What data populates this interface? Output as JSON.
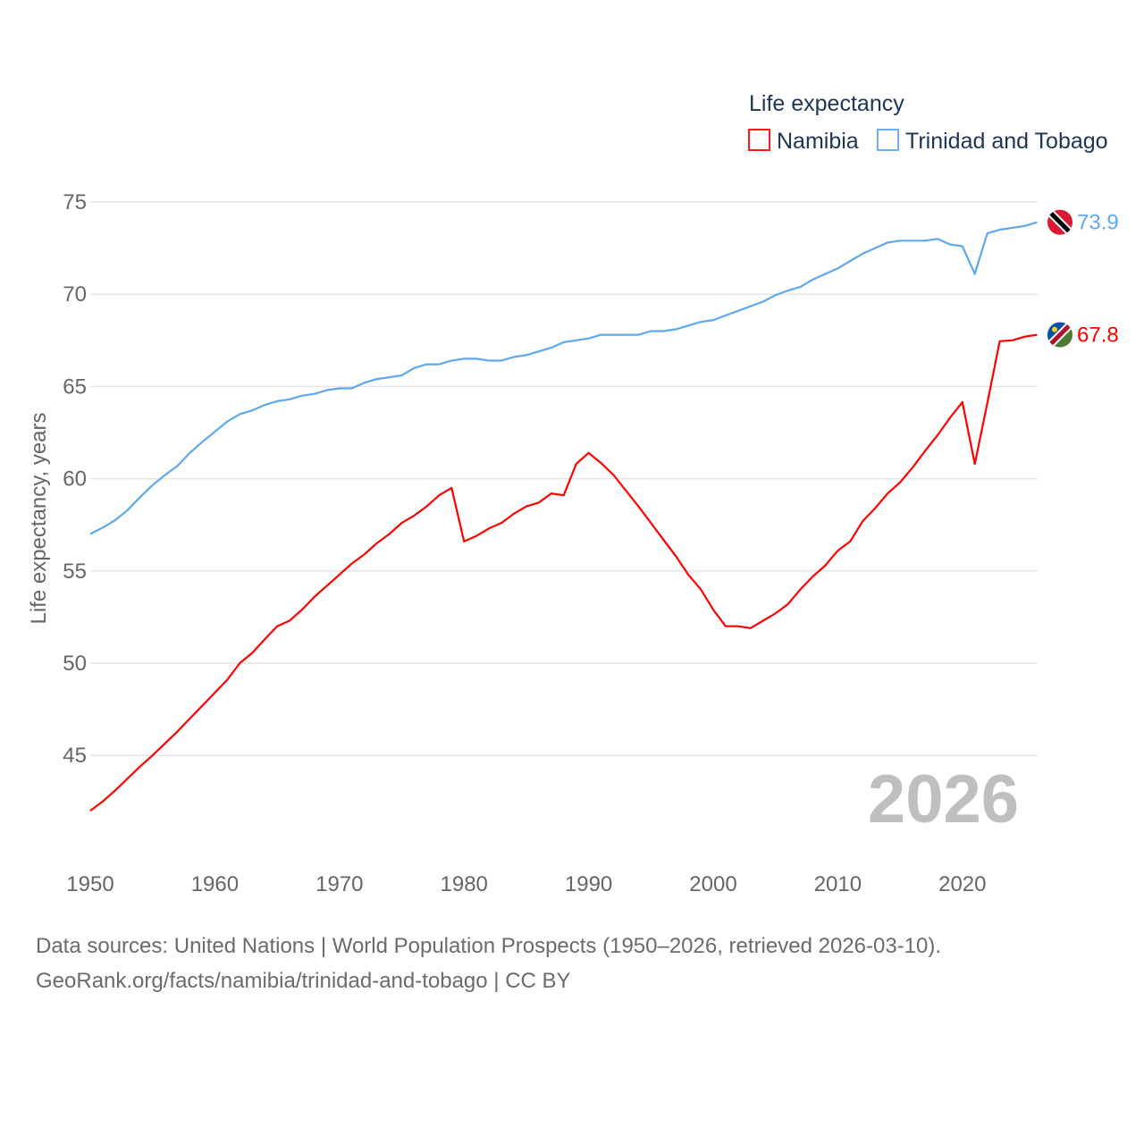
{
  "chart_data": {
    "type": "line",
    "legend_title": "Life expectancy",
    "legend_position": "top-right",
    "ylabel": "Life expectancy, years",
    "xlabel": "",
    "ylim": [
      40,
      76
    ],
    "xlim": [
      1950,
      2026
    ],
    "yticks": [
      45,
      50,
      55,
      60,
      65,
      70,
      75
    ],
    "xticks": [
      1950,
      1960,
      1970,
      1980,
      1990,
      2000,
      2010,
      2020
    ],
    "grid": true,
    "year_label": "2026",
    "x": [
      1950,
      1951,
      1952,
      1953,
      1954,
      1955,
      1956,
      1957,
      1958,
      1959,
      1960,
      1961,
      1962,
      1963,
      1964,
      1965,
      1966,
      1967,
      1968,
      1969,
      1970,
      1971,
      1972,
      1973,
      1974,
      1975,
      1976,
      1977,
      1978,
      1979,
      1980,
      1981,
      1982,
      1983,
      1984,
      1985,
      1986,
      1987,
      1988,
      1989,
      1990,
      1991,
      1992,
      1993,
      1994,
      1995,
      1996,
      1997,
      1998,
      1999,
      2000,
      2001,
      2002,
      2003,
      2004,
      2005,
      2006,
      2007,
      2008,
      2009,
      2010,
      2011,
      2012,
      2013,
      2014,
      2015,
      2016,
      2017,
      2018,
      2019,
      2020,
      2021,
      2022,
      2023,
      2024,
      2025,
      2026
    ],
    "series": [
      {
        "name": "Namibia",
        "color": "#ff0000",
        "end_label": "67.8",
        "flag": "namibia",
        "values": [
          42.0,
          42.5,
          43.1,
          43.75,
          44.4,
          45.0,
          45.65,
          46.3,
          47.0,
          47.7,
          48.4,
          49.1,
          50.0,
          50.55,
          51.3,
          52.0,
          52.3,
          52.9,
          53.6,
          54.2,
          54.8,
          55.4,
          55.9,
          56.5,
          57.0,
          57.6,
          58.0,
          58.5,
          59.1,
          59.5,
          56.6,
          56.9,
          57.3,
          57.6,
          58.1,
          58.5,
          58.7,
          59.2,
          59.1,
          60.8,
          61.4,
          60.85,
          60.2,
          59.35,
          58.5,
          57.6,
          56.7,
          55.8,
          54.8,
          54.0,
          52.9,
          52.0,
          52.0,
          51.9,
          52.3,
          52.7,
          53.2,
          54.0,
          54.7,
          55.3,
          56.1,
          56.6,
          57.7,
          58.4,
          59.2,
          59.8,
          60.6,
          61.5,
          62.35,
          63.3,
          64.15,
          60.8,
          64.1,
          67.45,
          67.5,
          67.7,
          67.8
        ]
      },
      {
        "name": "Trinidad and Tobago",
        "color": "#5ea8ee",
        "end_label": "73.9",
        "flag": "trinidad",
        "values": [
          57.0,
          57.35,
          57.75,
          58.3,
          59.0,
          59.65,
          60.2,
          60.7,
          61.4,
          62.0,
          62.55,
          63.1,
          63.5,
          63.7,
          64.0,
          64.2,
          64.3,
          64.5,
          64.6,
          64.8,
          64.9,
          64.9,
          65.2,
          65.4,
          65.5,
          65.6,
          66.0,
          66.2,
          66.2,
          66.4,
          66.5,
          66.5,
          66.4,
          66.4,
          66.6,
          66.7,
          66.9,
          67.1,
          67.4,
          67.5,
          67.6,
          67.8,
          67.8,
          67.8,
          67.8,
          68.0,
          68.0,
          68.1,
          68.3,
          68.5,
          68.6,
          68.85,
          69.1,
          69.35,
          69.6,
          69.95,
          70.2,
          70.4,
          70.8,
          71.1,
          71.4,
          71.8,
          72.2,
          72.5,
          72.8,
          72.9,
          72.9,
          72.9,
          73.0,
          72.7,
          72.6,
          71.1,
          73.3,
          73.5,
          73.6,
          73.7,
          73.9
        ]
      }
    ]
  },
  "footer": {
    "line1": "Data sources: United Nations | World Population Prospects (1950–2026, retrieved 2026-03-10).",
    "line2": "GeoRank.org/facts/namibia/trinidad-and-tobago | CC BY"
  }
}
